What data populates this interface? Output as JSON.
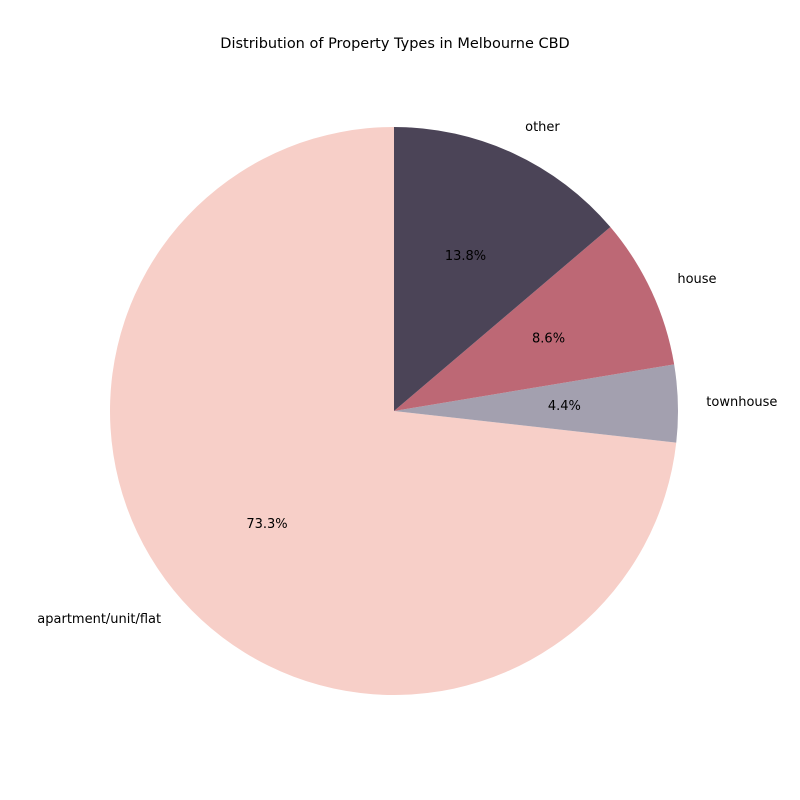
{
  "chart_data": {
    "type": "pie",
    "title": "Distribution of Property Types in Melbourne CBD",
    "categories": [
      "apartment/unit/flat",
      "townhouse",
      "house",
      "other"
    ],
    "values": [
      73.3,
      4.4,
      8.6,
      13.8
    ],
    "value_labels": [
      "73.3%",
      "4.4%",
      "8.6%",
      "13.8%"
    ],
    "colors": [
      "#f7cfc8",
      "#a3a0af",
      "#bd6875",
      "#4b4457"
    ],
    "start_angle_deg": 90,
    "direction": "counterclockwise",
    "legend": "none"
  }
}
